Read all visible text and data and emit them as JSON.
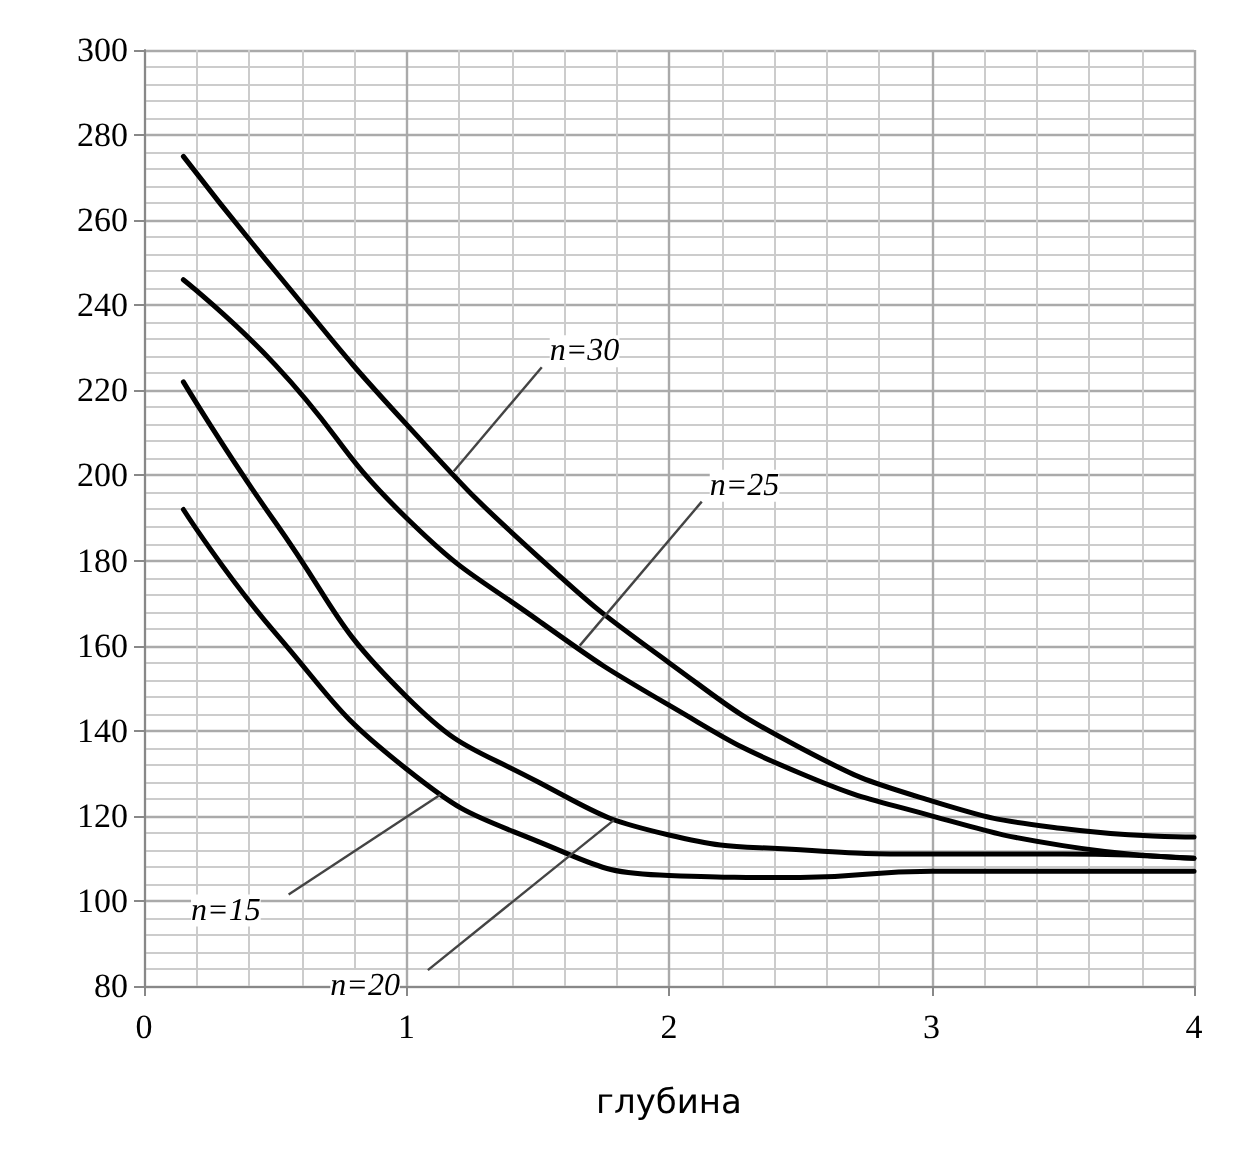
{
  "chart_data": {
    "type": "line",
    "xlabel": "глубина",
    "x": [
      0.15,
      0.5,
      1,
      1.5,
      2,
      2.5,
      3,
      3.5,
      4
    ],
    "series": [
      {
        "color": "#000000",
        "values": [
          275,
          248,
          212,
          181,
          156,
          136,
          123.5,
          117,
          115
        ]
      },
      {
        "color": "#000000",
        "values": [
          246,
          226,
          190,
          166,
          146,
          130,
          120,
          113,
          110
        ]
      },
      {
        "color": "#000000",
        "values": [
          222,
          189,
          148,
          128,
          115.5,
          112,
          111,
          111,
          110
        ]
      },
      {
        "color": "#000000",
        "values": [
          192,
          163,
          131,
          114,
          106,
          105.5,
          107,
          107,
          107
        ]
      }
    ],
    "xlim": [
      0,
      4
    ],
    "xticks": [
      0,
      1,
      2,
      3,
      4
    ],
    "ylim": [
      80,
      300
    ],
    "yticks": [
      80,
      100,
      120,
      140,
      160,
      180,
      200,
      220,
      240,
      260,
      280,
      300
    ],
    "grid": true,
    "marker": "none",
    "line_style": "solid",
    "annotations": [
      {
        "text": "n=30",
        "x": 1.18,
        "y": 201
      },
      {
        "text": "n=25",
        "x": 1.66,
        "y": 160
      },
      {
        "text": "n=15",
        "x": 1.13,
        "y": 125
      },
      {
        "text": "n=20",
        "x": 1.79,
        "y": 119
      }
    ]
  }
}
